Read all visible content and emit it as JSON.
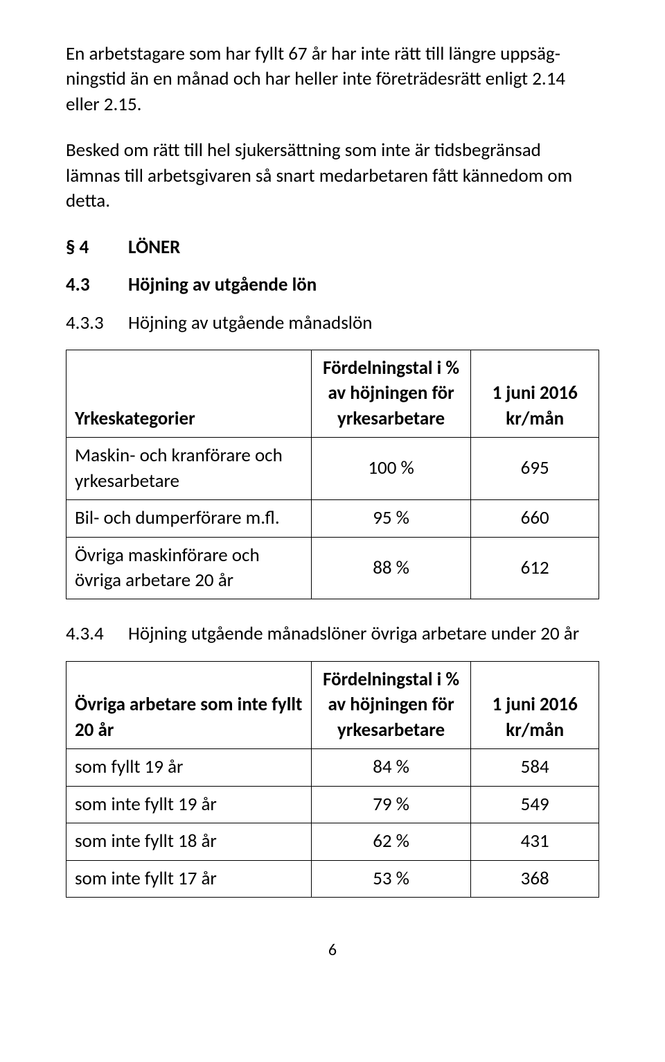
{
  "colors": {
    "text": "#000000",
    "background": "#ffffff",
    "table_border": "#000000"
  },
  "typography": {
    "body_fontsize_pt": 20,
    "heading_weight": "bold",
    "font_family": "Calibri"
  },
  "paragraphs": {
    "p1": "En arbetstagare som har fyllt 67 år har inte rätt till längre uppsäg­ningstid än en månad och har heller inte företrädesrätt enligt 2.14 eller 2.15.",
    "p2": "Besked om rätt till hel sjukersättning som inte är tidsbegränsad lämnas till arbetsgivaren så snart medarbetaren fått kännedom om detta."
  },
  "sections": {
    "s4": {
      "num": "§ 4",
      "title": "LÖNER"
    },
    "s4_3": {
      "num": "4.3",
      "title": "Höjning av utgående lön"
    },
    "s4_3_3": {
      "num": "4.3.3",
      "title": "Höjning av utgående månadslön"
    },
    "s4_3_4": {
      "num": "4.3.4",
      "title": "Höjning utgående månadslöner övriga arbetare under 20 år"
    }
  },
  "table1": {
    "type": "table",
    "col_widths_pct": [
      46,
      30,
      24
    ],
    "header": {
      "col1": "Yrkeskategorier",
      "col2": "Fördelningstal i % av höjningen för yrkesarbetare",
      "col3": "1 juni 2016 kr/mån"
    },
    "rows": [
      {
        "label": "Maskin- och kranförare och yrkesarbetare",
        "pct": "100 %",
        "val": "695"
      },
      {
        "label": "Bil- och dumperförare m.fl.",
        "pct": "95 %",
        "val": "660"
      },
      {
        "label": "Övriga maskinförare och övriga arbetare 20 år",
        "pct": "88 %",
        "val": "612"
      }
    ]
  },
  "table2": {
    "type": "table",
    "col_widths_pct": [
      46,
      30,
      24
    ],
    "header": {
      "col1": "Övriga arbetare som inte fyllt 20 år",
      "col2": "Fördelningstal i % av höjningen för yrkesarbetare",
      "col3": "1 juni 2016 kr/mån"
    },
    "rows": [
      {
        "label": "som fyllt 19 år",
        "pct": "84 %",
        "val": "584"
      },
      {
        "label": "som inte fyllt 19 år",
        "pct": "79 %",
        "val": "549"
      },
      {
        "label": "som inte fyllt 18 år",
        "pct": "62 %",
        "val": "431"
      },
      {
        "label": "som inte fyllt 17 år",
        "pct": "53 %",
        "val": "368"
      }
    ]
  },
  "page_number": "6"
}
